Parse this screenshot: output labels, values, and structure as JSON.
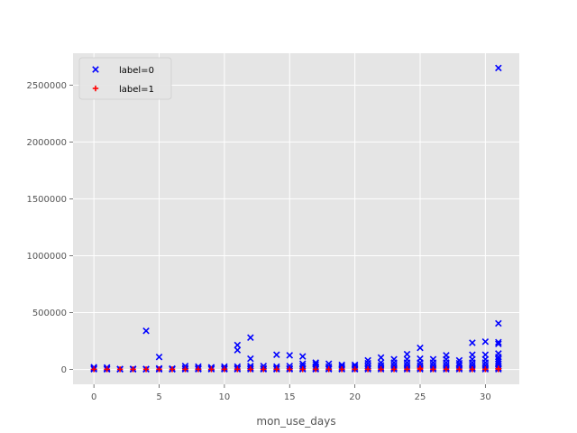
{
  "chart_data": {
    "type": "scatter",
    "title": "",
    "xlabel": "mon_use_days",
    "ylabel": "",
    "xlim": [
      -1.6,
      32.6
    ],
    "ylim": [
      -130000,
      2780000
    ],
    "xticks": [
      0,
      5,
      10,
      15,
      20,
      25,
      30
    ],
    "xtick_labels": [
      "0",
      "5",
      "10",
      "15",
      "20",
      "25",
      "30"
    ],
    "yticks": [
      0,
      500000,
      1000000,
      1500000,
      2000000,
      2500000
    ],
    "ytick_labels": [
      "0",
      "500000",
      "1000000",
      "1500000",
      "2000000",
      "2500000"
    ],
    "grid": true,
    "legend_position": "top-left",
    "colors": {
      "background": "#e5e5e5",
      "grid": "#ffffff",
      "label0": "#0000ff",
      "label1": "#ff0000"
    },
    "series": [
      {
        "name": "label=0",
        "marker": "x",
        "color": "#0000ff",
        "points": [
          [
            0,
            3000
          ],
          [
            0,
            10000
          ],
          [
            0,
            20000
          ],
          [
            1,
            2000
          ],
          [
            1,
            8000
          ],
          [
            1,
            18000
          ],
          [
            2,
            2000
          ],
          [
            2,
            5000
          ],
          [
            3,
            2000
          ],
          [
            3,
            6000
          ],
          [
            4,
            2000
          ],
          [
            4,
            5000
          ],
          [
            4,
            340000
          ],
          [
            5,
            2000
          ],
          [
            5,
            10000
          ],
          [
            5,
            110000
          ],
          [
            6,
            2000
          ],
          [
            6,
            8000
          ],
          [
            7,
            3000
          ],
          [
            7,
            12000
          ],
          [
            7,
            30000
          ],
          [
            8,
            3000
          ],
          [
            8,
            10000
          ],
          [
            8,
            25000
          ],
          [
            9,
            3000
          ],
          [
            9,
            10000
          ],
          [
            9,
            20000
          ],
          [
            10,
            3000
          ],
          [
            10,
            10000
          ],
          [
            10,
            25000
          ],
          [
            11,
            3000
          ],
          [
            11,
            10000
          ],
          [
            11,
            25000
          ],
          [
            11,
            170000
          ],
          [
            11,
            215000
          ],
          [
            12,
            3000
          ],
          [
            12,
            15000
          ],
          [
            12,
            30000
          ],
          [
            12,
            95000
          ],
          [
            12,
            280000
          ],
          [
            13,
            3000
          ],
          [
            13,
            10000
          ],
          [
            13,
            30000
          ],
          [
            14,
            3000
          ],
          [
            14,
            10000
          ],
          [
            14,
            25000
          ],
          [
            14,
            130000
          ],
          [
            15,
            3000
          ],
          [
            15,
            10000
          ],
          [
            15,
            30000
          ],
          [
            15,
            125000
          ],
          [
            16,
            3000
          ],
          [
            16,
            10000
          ],
          [
            16,
            30000
          ],
          [
            16,
            50000
          ],
          [
            16,
            115000
          ],
          [
            17,
            3000
          ],
          [
            17,
            10000
          ],
          [
            17,
            25000
          ],
          [
            17,
            45000
          ],
          [
            17,
            60000
          ],
          [
            18,
            3000
          ],
          [
            18,
            10000
          ],
          [
            18,
            25000
          ],
          [
            18,
            50000
          ],
          [
            19,
            3000
          ],
          [
            19,
            10000
          ],
          [
            19,
            25000
          ],
          [
            19,
            40000
          ],
          [
            20,
            3000
          ],
          [
            20,
            10000
          ],
          [
            20,
            25000
          ],
          [
            20,
            40000
          ],
          [
            21,
            3000
          ],
          [
            21,
            15000
          ],
          [
            21,
            30000
          ],
          [
            21,
            55000
          ],
          [
            21,
            80000
          ],
          [
            22,
            3000
          ],
          [
            22,
            15000
          ],
          [
            22,
            35000
          ],
          [
            22,
            60000
          ],
          [
            22,
            105000
          ],
          [
            23,
            3000
          ],
          [
            23,
            15000
          ],
          [
            23,
            35000
          ],
          [
            23,
            60000
          ],
          [
            23,
            90000
          ],
          [
            24,
            3000
          ],
          [
            24,
            15000
          ],
          [
            24,
            35000
          ],
          [
            24,
            60000
          ],
          [
            24,
            90000
          ],
          [
            24,
            135000
          ],
          [
            25,
            3000
          ],
          [
            25,
            15000
          ],
          [
            25,
            35000
          ],
          [
            25,
            60000
          ],
          [
            25,
            95000
          ],
          [
            25,
            190000
          ],
          [
            26,
            3000
          ],
          [
            26,
            15000
          ],
          [
            26,
            35000
          ],
          [
            26,
            60000
          ],
          [
            26,
            90000
          ],
          [
            27,
            3000
          ],
          [
            27,
            15000
          ],
          [
            27,
            35000
          ],
          [
            27,
            60000
          ],
          [
            27,
            90000
          ],
          [
            27,
            125000
          ],
          [
            28,
            3000
          ],
          [
            28,
            15000
          ],
          [
            28,
            35000
          ],
          [
            28,
            55000
          ],
          [
            28,
            80000
          ],
          [
            29,
            3000
          ],
          [
            29,
            15000
          ],
          [
            29,
            35000
          ],
          [
            29,
            60000
          ],
          [
            29,
            90000
          ],
          [
            29,
            130000
          ],
          [
            29,
            235000
          ],
          [
            30,
            3000
          ],
          [
            30,
            15000
          ],
          [
            30,
            35000
          ],
          [
            30,
            60000
          ],
          [
            30,
            90000
          ],
          [
            30,
            130000
          ],
          [
            30,
            245000
          ],
          [
            31,
            3000
          ],
          [
            31,
            15000
          ],
          [
            31,
            30000
          ],
          [
            31,
            50000
          ],
          [
            31,
            70000
          ],
          [
            31,
            90000
          ],
          [
            31,
            110000
          ],
          [
            31,
            140000
          ],
          [
            31,
            225000
          ],
          [
            31,
            240000
          ],
          [
            31,
            405000
          ],
          [
            31,
            2650000
          ]
        ]
      },
      {
        "name": "label=1",
        "marker": "+",
        "color": "#ff0000",
        "points": [
          [
            0,
            2000
          ],
          [
            1,
            2000
          ],
          [
            2,
            2000
          ],
          [
            3,
            2000
          ],
          [
            4,
            2000
          ],
          [
            5,
            2000
          ],
          [
            6,
            2000
          ],
          [
            7,
            2000
          ],
          [
            8,
            2000
          ],
          [
            9,
            2000
          ],
          [
            10,
            2000
          ],
          [
            11,
            2000
          ],
          [
            12,
            2000
          ],
          [
            13,
            2000
          ],
          [
            14,
            2000
          ],
          [
            15,
            2000
          ],
          [
            16,
            2000
          ],
          [
            17,
            2000
          ],
          [
            18,
            2000
          ],
          [
            19,
            2000
          ],
          [
            20,
            2000
          ],
          [
            21,
            2000
          ],
          [
            22,
            2000
          ],
          [
            23,
            2000
          ],
          [
            24,
            2000
          ],
          [
            25,
            2000
          ],
          [
            25,
            10000
          ],
          [
            26,
            2000
          ],
          [
            27,
            2000
          ],
          [
            28,
            2000
          ],
          [
            29,
            2000
          ],
          [
            30,
            2000
          ],
          [
            31,
            2000
          ],
          [
            31,
            8000
          ]
        ]
      }
    ]
  }
}
